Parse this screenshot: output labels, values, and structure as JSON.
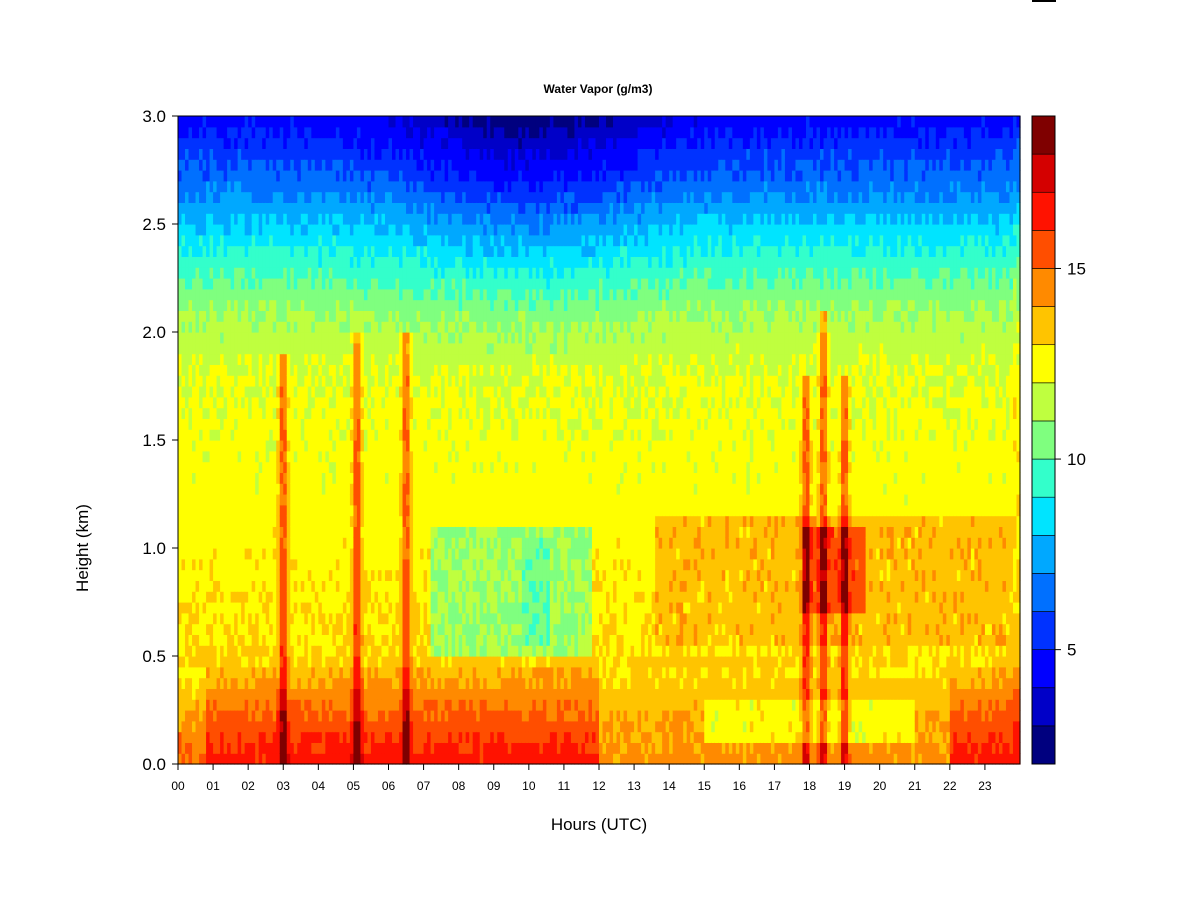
{
  "chart_data": {
    "type": "heatmap",
    "title": "Water Vapor (g/m3)",
    "xlabel": "Hours (UTC)",
    "ylabel": "Height (km)",
    "xlim": [
      0,
      24
    ],
    "ylim": [
      0.0,
      3.0
    ],
    "x_ticks": [
      "00",
      "01",
      "02",
      "03",
      "04",
      "05",
      "06",
      "07",
      "08",
      "09",
      "10",
      "11",
      "12",
      "13",
      "14",
      "15",
      "16",
      "17",
      "18",
      "19",
      "20",
      "21",
      "22",
      "23"
    ],
    "y_ticks": [
      "0.0",
      "0.5",
      "1.0",
      "1.5",
      "2.0",
      "2.5",
      "3.0"
    ],
    "legend": "right",
    "colorbar": {
      "min": 2,
      "max": 19,
      "ticks": [
        "5",
        "10",
        "15"
      ],
      "tick_values": [
        5,
        10,
        15
      ],
      "colors": [
        "#00007F",
        "#0000C8",
        "#0000FF",
        "#0032FF",
        "#0070FF",
        "#00A8FF",
        "#00E4FF",
        "#33FFCB",
        "#7FFF7F",
        "#BFFF3F",
        "#FFFF00",
        "#FFC400",
        "#FF8A00",
        "#FF4E00",
        "#FF1200",
        "#D40000",
        "#7F0000"
      ]
    },
    "profile": {
      "heights_km": [
        0.0,
        0.1,
        0.25,
        0.4,
        0.5,
        0.8,
        1.1,
        1.5,
        1.8,
        2.1,
        2.4,
        2.7,
        3.0
      ],
      "typical_g_m3": [
        16.5,
        16.0,
        15.0,
        14.0,
        13.0,
        12.8,
        12.5,
        12.3,
        12.0,
        11.0,
        9.0,
        6.5,
        4.5
      ]
    },
    "moist_columns": [
      {
        "hour": 3.0,
        "to_km": 1.9
      },
      {
        "hour": 5.1,
        "to_km": 2.0
      },
      {
        "hour": 6.5,
        "to_km": 2.0
      },
      {
        "hour": 17.9,
        "to_km": 1.8
      },
      {
        "hour": 18.4,
        "to_km": 2.1
      },
      {
        "hour": 19.0,
        "to_km": 1.8
      }
    ],
    "drier_patches": [
      {
        "hours": [
          7.2,
          11.8
        ],
        "km": [
          0.5,
          1.1
        ],
        "value": 11.0
      },
      {
        "hours": [
          9.8,
          10.6
        ],
        "km": [
          0.55,
          1.05
        ],
        "value": 10.2
      }
    ],
    "moist_patches": [
      {
        "hours": [
          13.6,
          23.8
        ],
        "km": [
          0.55,
          1.15
        ],
        "value": 13.6
      },
      {
        "hours": [
          17.8,
          19.6
        ],
        "km": [
          0.7,
          1.1
        ],
        "value": 15.5
      }
    ],
    "near_surface_dry": [
      {
        "hours": [
          15.0,
          21.0
        ],
        "km": [
          0.1,
          0.3
        ],
        "value": 12.5
      }
    ]
  }
}
